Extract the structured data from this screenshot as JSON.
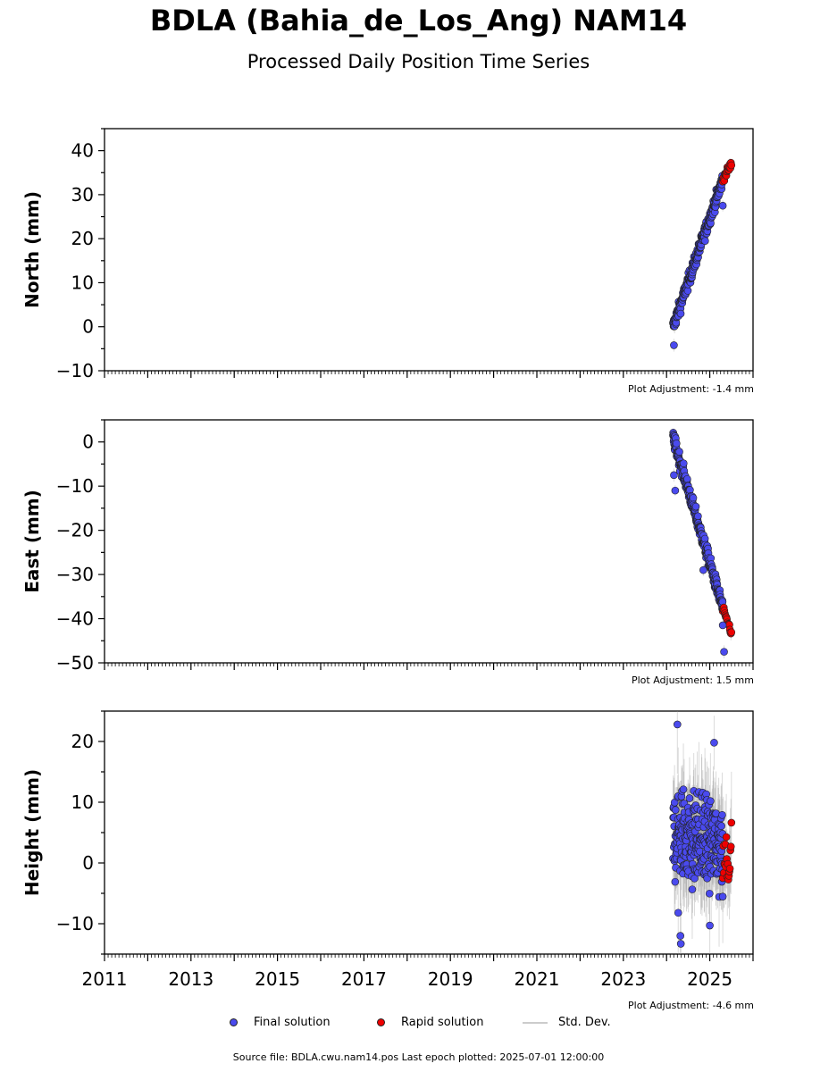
{
  "header": {
    "title": "BDLA (Bahia_de_Los_Ang) NAM14",
    "subtitle": "Processed Daily Position Time Series"
  },
  "colors": {
    "final": "#4a4aee",
    "rapid": "#ee0000",
    "stddev": "#999999"
  },
  "chart_data": [
    {
      "type": "scatter",
      "ylabel": "North (mm)",
      "ylim": [
        -10,
        45
      ],
      "yticks": [
        -10,
        0,
        10,
        20,
        30,
        40
      ],
      "xlim": [
        2011,
        2026
      ],
      "adjustment": "Plot Adjustment: -1.4 mm",
      "final_trend": {
        "x": [
          2024.15,
          2025.3
        ],
        "y": [
          0,
          33.5
        ]
      },
      "rapid_trend": {
        "x": [
          2025.3,
          2025.5
        ],
        "y": [
          33.5,
          37
        ]
      },
      "noise_mm": 1.2,
      "outliers": [
        {
          "x": 2024.17,
          "y": -4.2
        },
        {
          "x": 2025.3,
          "y": 27.5
        }
      ]
    },
    {
      "type": "scatter",
      "ylabel": "East (mm)",
      "ylim": [
        -50,
        5
      ],
      "yticks": [
        -50,
        -40,
        -30,
        -20,
        -10,
        0
      ],
      "xlim": [
        2011,
        2026
      ],
      "adjustment": "Plot Adjustment: 1.5 mm",
      "final_trend": {
        "x": [
          2024.15,
          2025.3
        ],
        "y": [
          1,
          -37.5
        ]
      },
      "rapid_trend": {
        "x": [
          2025.3,
          2025.5
        ],
        "y": [
          -38,
          -43
        ]
      },
      "noise_mm": 1.3,
      "outliers": [
        {
          "x": 2024.17,
          "y": -7.5
        },
        {
          "x": 2024.2,
          "y": -11
        },
        {
          "x": 2024.85,
          "y": -29
        },
        {
          "x": 2025.3,
          "y": -41.5
        },
        {
          "x": 2025.33,
          "y": -47.5
        }
      ]
    },
    {
      "type": "scatter",
      "ylabel": "Height (mm)",
      "ylim": [
        -15,
        25
      ],
      "yticks": [
        -10,
        0,
        10,
        20
      ],
      "xlim": [
        2011,
        2026
      ],
      "adjustment": "Plot Adjustment: -4.6 mm",
      "final_trend": {
        "x": [
          2024.15,
          2025.3
        ],
        "y": [
          5,
          3
        ]
      },
      "rapid_trend": {
        "x": [
          2025.3,
          2025.5
        ],
        "y": [
          1,
          1
        ]
      },
      "noise_mm": 5.5,
      "outliers": [
        {
          "x": 2024.25,
          "y": 22.8
        },
        {
          "x": 2024.27,
          "y": -8.2
        },
        {
          "x": 2024.32,
          "y": -12
        },
        {
          "x": 2024.33,
          "y": -13.3
        },
        {
          "x": 2025.0,
          "y": -10.3
        },
        {
          "x": 2025.1,
          "y": 19.8
        }
      ]
    }
  ],
  "x_axis": {
    "tick_labels": [
      "2011",
      "2013",
      "2015",
      "2017",
      "2019",
      "2021",
      "2023",
      "2025"
    ]
  },
  "legend": {
    "final": "Final solution",
    "rapid": "Rapid solution",
    "stddev": "Std. Dev."
  },
  "footer": {
    "source": "Source file: BDLA.cwu.nam14.pos  Last epoch plotted: 2025-07-01 12:00:00"
  }
}
